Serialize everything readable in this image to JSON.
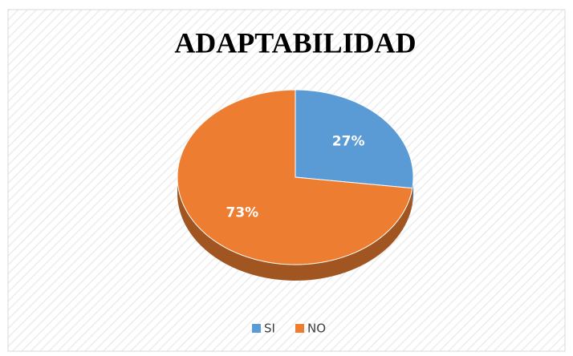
{
  "chart_data": {
    "type": "pie",
    "title": "ADAPTABILIDAD",
    "categories": [
      "SI",
      "NO"
    ],
    "values": [
      27,
      73
    ],
    "value_labels": [
      "27%",
      "73%"
    ],
    "colors": [
      "#5b9bd5",
      "#ed7d31"
    ],
    "legend": "bottom"
  }
}
